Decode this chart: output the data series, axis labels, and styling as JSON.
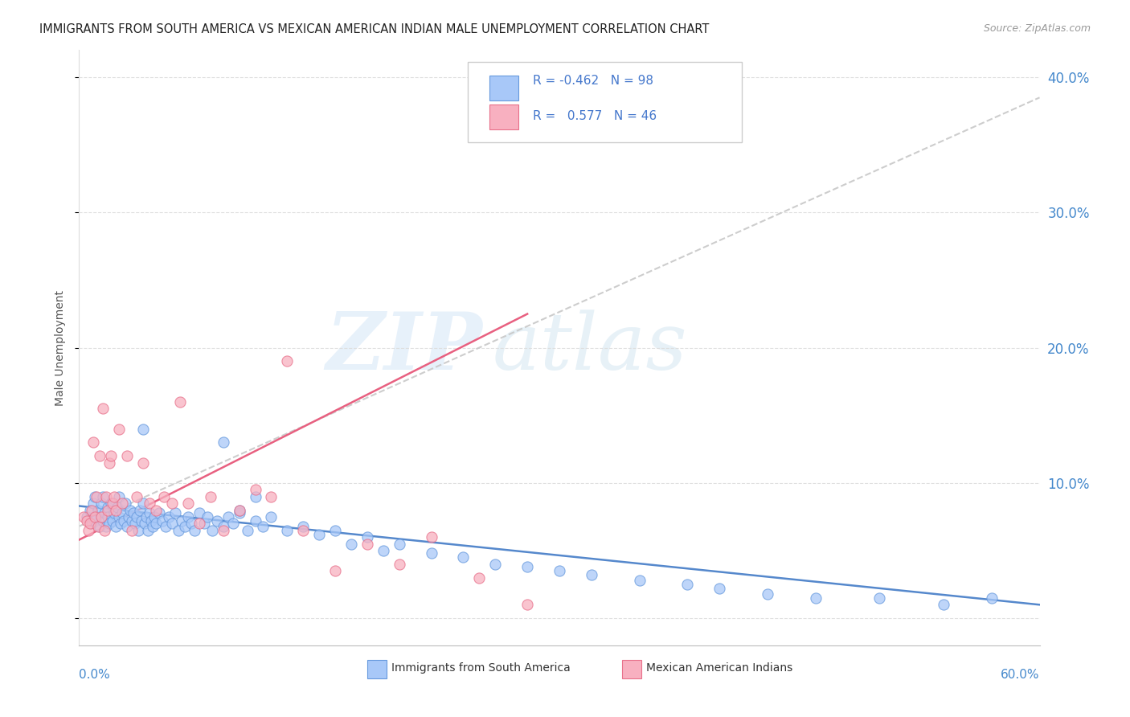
{
  "title": "IMMIGRANTS FROM SOUTH AMERICA VS MEXICAN AMERICAN INDIAN MALE UNEMPLOYMENT CORRELATION CHART",
  "source": "Source: ZipAtlas.com",
  "ylabel": "Male Unemployment",
  "xmin": 0.0,
  "xmax": 0.6,
  "ymin": -0.02,
  "ymax": 0.42,
  "yticks": [
    0.0,
    0.1,
    0.2,
    0.3,
    0.4
  ],
  "ytick_labels": [
    "",
    "10.0%",
    "20.0%",
    "30.0%",
    "40.0%"
  ],
  "blue_R": -0.462,
  "blue_N": 98,
  "pink_R": 0.577,
  "pink_N": 46,
  "blue_color": "#a8c8f8",
  "pink_color": "#f8b0c0",
  "blue_edge_color": "#6699dd",
  "pink_edge_color": "#e8708a",
  "blue_line_color": "#5588cc",
  "pink_line_color": "#e86080",
  "gray_dash_color": "#c8c8c8",
  "legend_text_color": "#4477cc",
  "watermark_zip_color": "#d8e8f8",
  "watermark_atlas_color": "#d0e4f0",
  "grid_color": "#dddddd",
  "bg_color": "#ffffff",
  "title_fontsize": 10.5,
  "source_fontsize": 9,
  "axis_label_color": "#4488cc",
  "blue_trend_y_start": 0.083,
  "blue_trend_y_end": 0.01,
  "pink_trend_y_start": 0.058,
  "pink_trend_y_end": 0.225,
  "gray_trend_y_start": 0.068,
  "gray_trend_y_end": 0.385,
  "legend_label_blue": "Immigrants from South America",
  "legend_label_pink": "Mexican American Indians",
  "blue_scatter_x": [
    0.005,
    0.007,
    0.008,
    0.009,
    0.01,
    0.01,
    0.011,
    0.012,
    0.013,
    0.014,
    0.015,
    0.015,
    0.016,
    0.017,
    0.018,
    0.018,
    0.019,
    0.02,
    0.021,
    0.022,
    0.023,
    0.024,
    0.025,
    0.025,
    0.026,
    0.027,
    0.028,
    0.029,
    0.03,
    0.031,
    0.032,
    0.033,
    0.034,
    0.035,
    0.036,
    0.037,
    0.038,
    0.039,
    0.04,
    0.041,
    0.042,
    0.043,
    0.044,
    0.045,
    0.046,
    0.047,
    0.048,
    0.05,
    0.052,
    0.054,
    0.056,
    0.058,
    0.06,
    0.062,
    0.064,
    0.066,
    0.068,
    0.07,
    0.072,
    0.075,
    0.078,
    0.08,
    0.083,
    0.086,
    0.09,
    0.093,
    0.096,
    0.1,
    0.105,
    0.11,
    0.115,
    0.12,
    0.13,
    0.14,
    0.15,
    0.16,
    0.17,
    0.18,
    0.19,
    0.2,
    0.22,
    0.24,
    0.26,
    0.28,
    0.3,
    0.32,
    0.35,
    0.38,
    0.4,
    0.43,
    0.46,
    0.5,
    0.54,
    0.57,
    0.04,
    0.09,
    0.1,
    0.11
  ],
  "blue_scatter_y": [
    0.075,
    0.08,
    0.07,
    0.085,
    0.072,
    0.09,
    0.075,
    0.08,
    0.068,
    0.085,
    0.072,
    0.09,
    0.078,
    0.068,
    0.082,
    0.075,
    0.07,
    0.085,
    0.072,
    0.078,
    0.068,
    0.082,
    0.075,
    0.09,
    0.07,
    0.078,
    0.072,
    0.085,
    0.068,
    0.075,
    0.08,
    0.072,
    0.078,
    0.07,
    0.075,
    0.065,
    0.08,
    0.072,
    0.085,
    0.07,
    0.075,
    0.065,
    0.078,
    0.072,
    0.068,
    0.075,
    0.07,
    0.078,
    0.072,
    0.068,
    0.075,
    0.07,
    0.078,
    0.065,
    0.072,
    0.068,
    0.075,
    0.07,
    0.065,
    0.078,
    0.07,
    0.075,
    0.065,
    0.072,
    0.068,
    0.075,
    0.07,
    0.078,
    0.065,
    0.072,
    0.068,
    0.075,
    0.065,
    0.068,
    0.062,
    0.065,
    0.055,
    0.06,
    0.05,
    0.055,
    0.048,
    0.045,
    0.04,
    0.038,
    0.035,
    0.032,
    0.028,
    0.025,
    0.022,
    0.018,
    0.015,
    0.015,
    0.01,
    0.015,
    0.14,
    0.13,
    0.08,
    0.09
  ],
  "pink_scatter_x": [
    0.003,
    0.005,
    0.006,
    0.007,
    0.008,
    0.009,
    0.01,
    0.011,
    0.012,
    0.013,
    0.014,
    0.015,
    0.016,
    0.017,
    0.018,
    0.019,
    0.02,
    0.021,
    0.022,
    0.023,
    0.025,
    0.027,
    0.03,
    0.033,
    0.036,
    0.04,
    0.044,
    0.048,
    0.053,
    0.058,
    0.063,
    0.068,
    0.075,
    0.082,
    0.09,
    0.1,
    0.11,
    0.12,
    0.13,
    0.14,
    0.16,
    0.18,
    0.2,
    0.22,
    0.25,
    0.28
  ],
  "pink_scatter_y": [
    0.075,
    0.072,
    0.065,
    0.07,
    0.08,
    0.13,
    0.075,
    0.09,
    0.068,
    0.12,
    0.075,
    0.155,
    0.065,
    0.09,
    0.08,
    0.115,
    0.12,
    0.085,
    0.09,
    0.08,
    0.14,
    0.085,
    0.12,
    0.065,
    0.09,
    0.115,
    0.085,
    0.08,
    0.09,
    0.085,
    0.16,
    0.085,
    0.07,
    0.09,
    0.065,
    0.08,
    0.095,
    0.09,
    0.19,
    0.065,
    0.035,
    0.055,
    0.04,
    0.06,
    0.03,
    0.01
  ]
}
